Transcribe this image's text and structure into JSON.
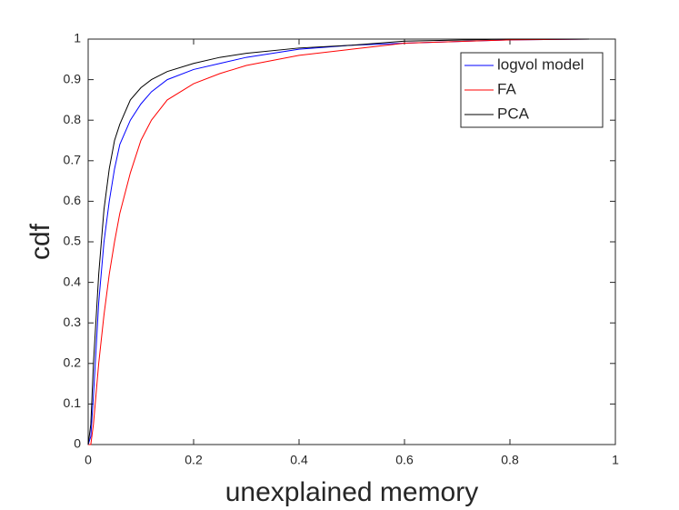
{
  "chart_data": {
    "type": "line",
    "xlabel": "unexplained memory",
    "ylabel": "cdf",
    "x": [
      0,
      0.005,
      0.01,
      0.02,
      0.03,
      0.04,
      0.05,
      0.06,
      0.08,
      0.1,
      0.12,
      0.15,
      0.2,
      0.25,
      0.3,
      0.4,
      0.5,
      0.6,
      0.8,
      0.95
    ],
    "series": [
      {
        "name": "logvol model",
        "color": "#0000ff",
        "values": [
          0,
          0.02,
          0.12,
          0.35,
          0.5,
          0.6,
          0.68,
          0.74,
          0.8,
          0.84,
          0.87,
          0.9,
          0.925,
          0.94,
          0.955,
          0.975,
          0.985,
          0.99,
          0.998,
          1
        ]
      },
      {
        "name": "FA",
        "color": "#ff0000",
        "values": [
          0,
          0,
          0.05,
          0.2,
          0.32,
          0.42,
          0.5,
          0.57,
          0.67,
          0.75,
          0.8,
          0.85,
          0.89,
          0.915,
          0.935,
          0.96,
          0.975,
          0.99,
          0.998,
          1
        ]
      },
      {
        "name": "PCA",
        "color": "#000000",
        "values": [
          0,
          0.05,
          0.2,
          0.42,
          0.58,
          0.68,
          0.75,
          0.79,
          0.85,
          0.88,
          0.9,
          0.92,
          0.94,
          0.955,
          0.965,
          0.978,
          0.985,
          0.995,
          1,
          1
        ]
      }
    ],
    "xlim": [
      0,
      1
    ],
    "xticks": [
      0,
      0.2,
      0.4,
      0.6,
      0.8,
      1
    ],
    "ylim": [
      0,
      1
    ],
    "yticks": [
      0,
      0.1,
      0.2,
      0.3,
      0.4,
      0.5,
      0.6,
      0.7,
      0.8,
      0.9,
      1
    ],
    "legend": "top-right",
    "grid": false
  }
}
